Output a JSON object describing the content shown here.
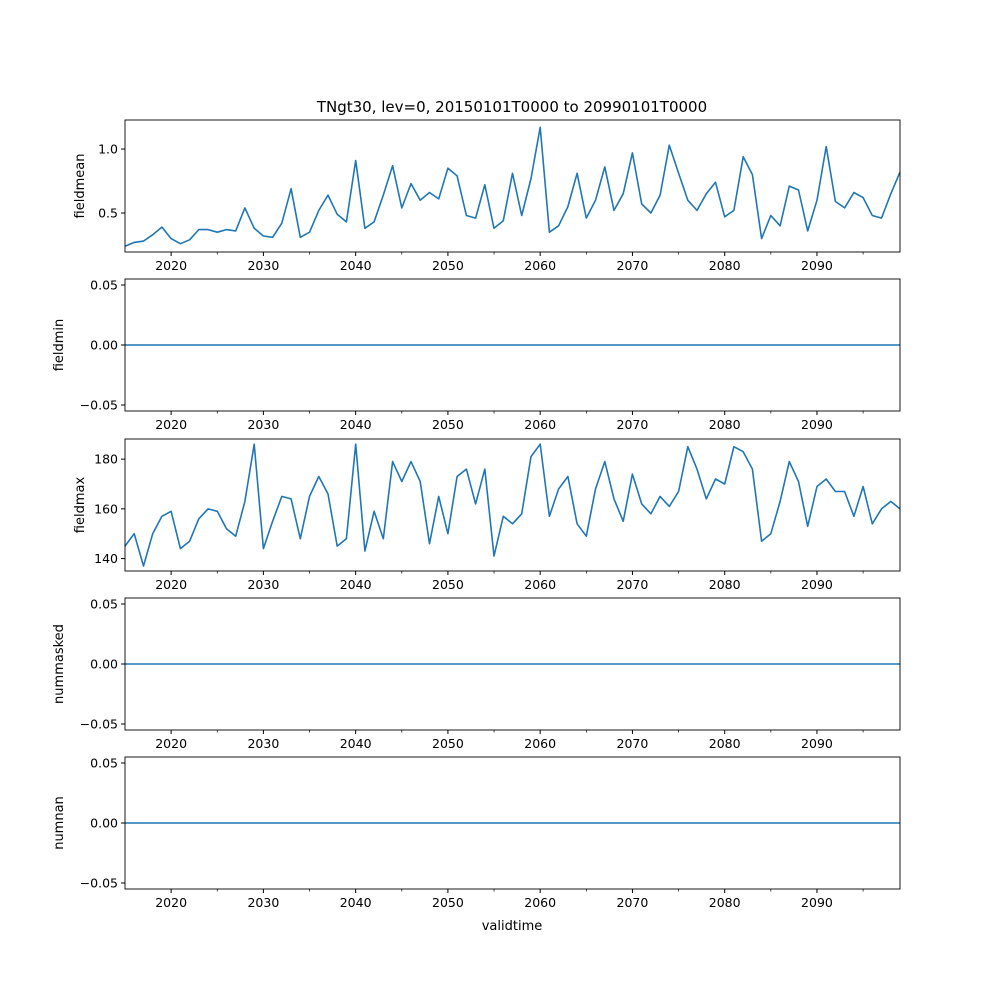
{
  "chart_data": [
    {
      "type": "line",
      "title": "TNgt30, lev=0, 20150101T0000 to 20990101T0000",
      "ylabel": "fieldmean",
      "xlabel": "",
      "xlim": [
        2015,
        2099
      ],
      "ylim": [
        0.195,
        1.227
      ],
      "yticks": [
        0.5,
        1.0
      ],
      "ytick_labels": [
        "0.5",
        "1.0"
      ],
      "series": [
        {
          "name": "fieldmean",
          "color": "#1f77b4",
          "x_start": 2015,
          "values": [
            0.24,
            0.27,
            0.28,
            0.33,
            0.39,
            0.3,
            0.26,
            0.29,
            0.37,
            0.37,
            0.35,
            0.37,
            0.36,
            0.54,
            0.38,
            0.32,
            0.31,
            0.42,
            0.69,
            0.31,
            0.35,
            0.52,
            0.64,
            0.49,
            0.43,
            0.91,
            0.38,
            0.43,
            0.64,
            0.87,
            0.54,
            0.73,
            0.6,
            0.66,
            0.61,
            0.85,
            0.79,
            0.48,
            0.46,
            0.72,
            0.38,
            0.44,
            0.81,
            0.48,
            0.77,
            1.17,
            0.35,
            0.4,
            0.55,
            0.81,
            0.46,
            0.6,
            0.86,
            0.52,
            0.65,
            0.97,
            0.57,
            0.5,
            0.64,
            1.03,
            0.81,
            0.6,
            0.52,
            0.65,
            0.74,
            0.47,
            0.52,
            0.94,
            0.8,
            0.3,
            0.48,
            0.4,
            0.71,
            0.68,
            0.36,
            0.6,
            1.02,
            0.59,
            0.54,
            0.66,
            0.62,
            0.48,
            0.46,
            0.65,
            0.82
          ]
        }
      ]
    },
    {
      "type": "line",
      "ylabel": "fieldmin",
      "xlim": [
        2015,
        2099
      ],
      "ylim": [
        -0.055,
        0.055
      ],
      "yticks": [
        -0.05,
        0.0,
        0.05
      ],
      "ytick_labels": [
        "−0.05",
        "0.00",
        "0.05"
      ],
      "series": [
        {
          "name": "fieldmin",
          "color": "#1f77b4",
          "x_start": 2015,
          "constant": 0
        }
      ]
    },
    {
      "type": "line",
      "ylabel": "fieldmax",
      "xlim": [
        2015,
        2099
      ],
      "ylim": [
        135.0,
        188.1
      ],
      "yticks": [
        140,
        160,
        180
      ],
      "ytick_labels": [
        "140",
        "160",
        "180"
      ],
      "series": [
        {
          "name": "fieldmax",
          "color": "#1f77b4",
          "x_start": 2015,
          "values": [
            145,
            150,
            137,
            150,
            157,
            159,
            144,
            147,
            156,
            160,
            159,
            152,
            149,
            163,
            186,
            144,
            155,
            165,
            164,
            148,
            165,
            173,
            166,
            145,
            148,
            186,
            143,
            159,
            148,
            179,
            171,
            179,
            171,
            146,
            165,
            150,
            173,
            176,
            162,
            176,
            141,
            157,
            154,
            158,
            181,
            186,
            157,
            168,
            173,
            154,
            149,
            168,
            179,
            164,
            155,
            174,
            162,
            158,
            165,
            161,
            167,
            185,
            176,
            164,
            172,
            170,
            185,
            183,
            176,
            147,
            150,
            163,
            179,
            171,
            153,
            169,
            172,
            167,
            167,
            157,
            169,
            154,
            160,
            163,
            160
          ]
        }
      ]
    },
    {
      "type": "line",
      "ylabel": "nummasked",
      "xlim": [
        2015,
        2099
      ],
      "ylim": [
        -0.055,
        0.055
      ],
      "yticks": [
        -0.05,
        0.0,
        0.05
      ],
      "ytick_labels": [
        "−0.05",
        "0.00",
        "0.05"
      ],
      "series": [
        {
          "name": "nummasked",
          "color": "#1f77b4",
          "x_start": 2015,
          "constant": 0
        }
      ]
    },
    {
      "type": "line",
      "ylabel": "numnan",
      "xlabel": "validtime",
      "xlim": [
        2015,
        2099
      ],
      "ylim": [
        -0.055,
        0.055
      ],
      "yticks": [
        -0.05,
        0.0,
        0.05
      ],
      "ytick_labels": [
        "−0.05",
        "0.00",
        "0.05"
      ],
      "series": [
        {
          "name": "numnan",
          "color": "#1f77b4",
          "x_start": 2015,
          "constant": 0
        }
      ]
    }
  ],
  "xticks": [
    2020,
    2030,
    2040,
    2050,
    2060,
    2070,
    2080,
    2090
  ],
  "xtick_labels": [
    "2020",
    "2030",
    "2040",
    "2050",
    "2060",
    "2070",
    "2080",
    "2090"
  ],
  "minor_xticks": [
    2025,
    2035,
    2045,
    2055,
    2065,
    2075,
    2085,
    2095
  ]
}
